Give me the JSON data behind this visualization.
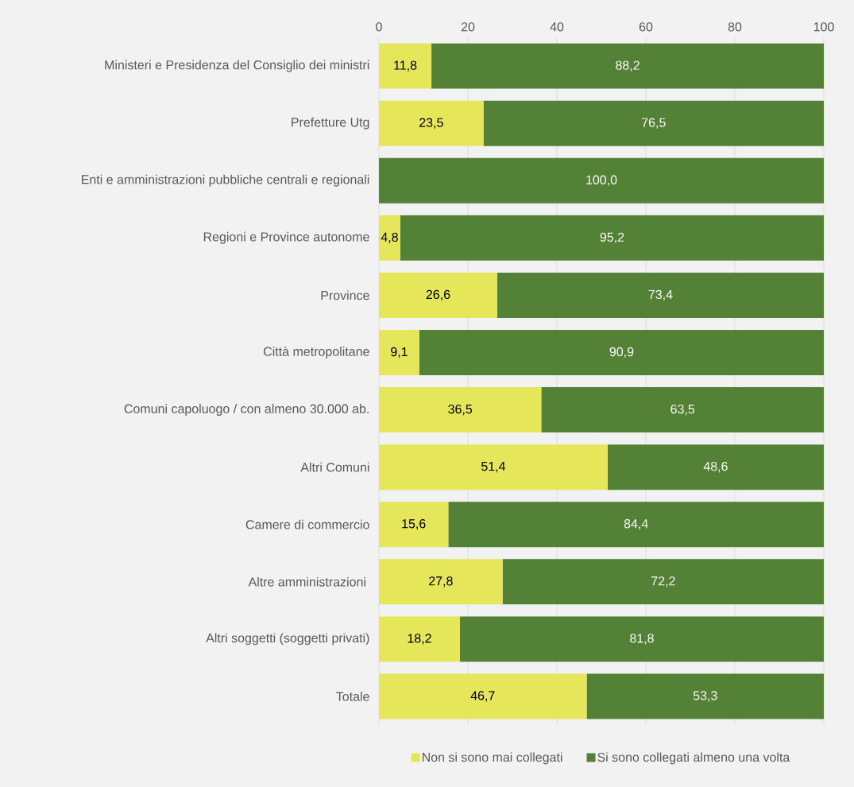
{
  "chart_data": {
    "type": "bar",
    "orientation": "horizontal",
    "stacked": true,
    "categories": [
      "Ministeri e Presidenza del Consiglio dei ministri",
      "Prefetture Utg",
      "Enti e amministrazioni pubbliche centrali e regionali",
      "Regioni e Province autonome",
      "Province",
      "Città metropolitane",
      "Comuni capoluogo / con almeno 30.000 ab.",
      "Altri Comuni",
      "Camere di commercio",
      "Altre amministrazioni ",
      "Altri soggetti (soggetti privati)",
      "Totale"
    ],
    "series": [
      {
        "name": "Non si sono mai collegati",
        "color": "#e6e65a",
        "values": [
          11.8,
          23.5,
          0,
          4.8,
          26.6,
          9.1,
          36.5,
          51.4,
          15.6,
          27.8,
          18.2,
          46.7
        ],
        "value_labels": [
          "11,8",
          "23,5",
          null,
          "4,8",
          "26,6",
          "9,1",
          "36,5",
          "51,4",
          "15,6",
          "27,8",
          "18,2",
          "46,7"
        ]
      },
      {
        "name": "Si sono collegati almeno una volta",
        "color": "#538135",
        "values": [
          88.2,
          76.5,
          100.0,
          95.2,
          73.4,
          90.9,
          63.5,
          48.6,
          84.4,
          72.2,
          81.8,
          53.3
        ],
        "value_labels": [
          "88,2",
          "76,5",
          "100,0",
          "95,2",
          "73,4",
          "90,9",
          "63,5",
          "48,6",
          "84,4",
          "72,2",
          "81,8",
          "53,3"
        ]
      }
    ],
    "xlim": [
      0,
      100
    ],
    "xticks": [
      0,
      20,
      40,
      60,
      80,
      100
    ],
    "grid": "x",
    "legend": "bottom"
  }
}
